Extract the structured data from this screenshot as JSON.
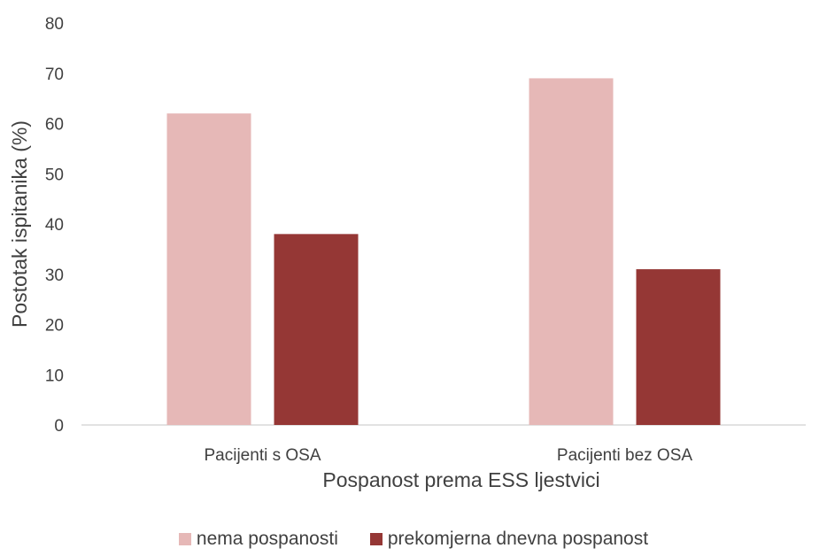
{
  "chart_data": {
    "type": "bar",
    "categories": [
      "Pacijenti s OSA",
      "Pacijenti bez OSA"
    ],
    "series": [
      {
        "name": "nema pospanosti",
        "values": [
          62,
          69
        ],
        "color": "#e6b8b7"
      },
      {
        "name": "prekomjerna dnevna pospanost",
        "values": [
          38,
          31
        ],
        "color": "#953735"
      }
    ],
    "xlabel": "Pospanost prema ESS ljestvici",
    "ylabel": "Postotak ispitanika (%)",
    "ylim": [
      0,
      80
    ],
    "yticks": [
      0,
      10,
      20,
      30,
      40,
      50,
      60,
      70,
      80
    ],
    "grid": false,
    "legend_position": "bottom"
  }
}
